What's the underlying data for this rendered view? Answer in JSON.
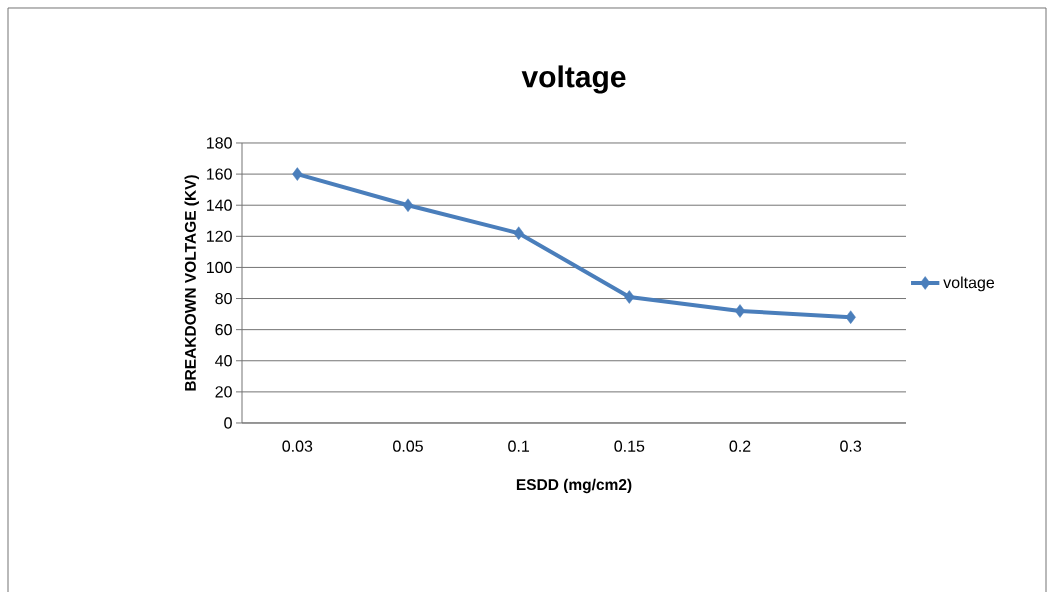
{
  "chart_data": {
    "type": "line",
    "title": "voltage",
    "xlabel": "ESDD (mg/cm2)",
    "ylabel": "BREAKDOWN VOLTAGE (KV)",
    "categories": [
      "0.03",
      "0.05",
      "0.1",
      "0.15",
      "0.2",
      "0.3"
    ],
    "series": [
      {
        "name": "voltage",
        "color": "#4a7ebb",
        "values": [
          160,
          140,
          122,
          81,
          72,
          68
        ]
      }
    ],
    "ylim": [
      0,
      180
    ],
    "yticks": [
      0,
      20,
      40,
      60,
      80,
      100,
      120,
      140,
      160,
      180
    ],
    "grid": "y",
    "legend": "right",
    "marker": "diamond",
    "line_style": "solid"
  }
}
